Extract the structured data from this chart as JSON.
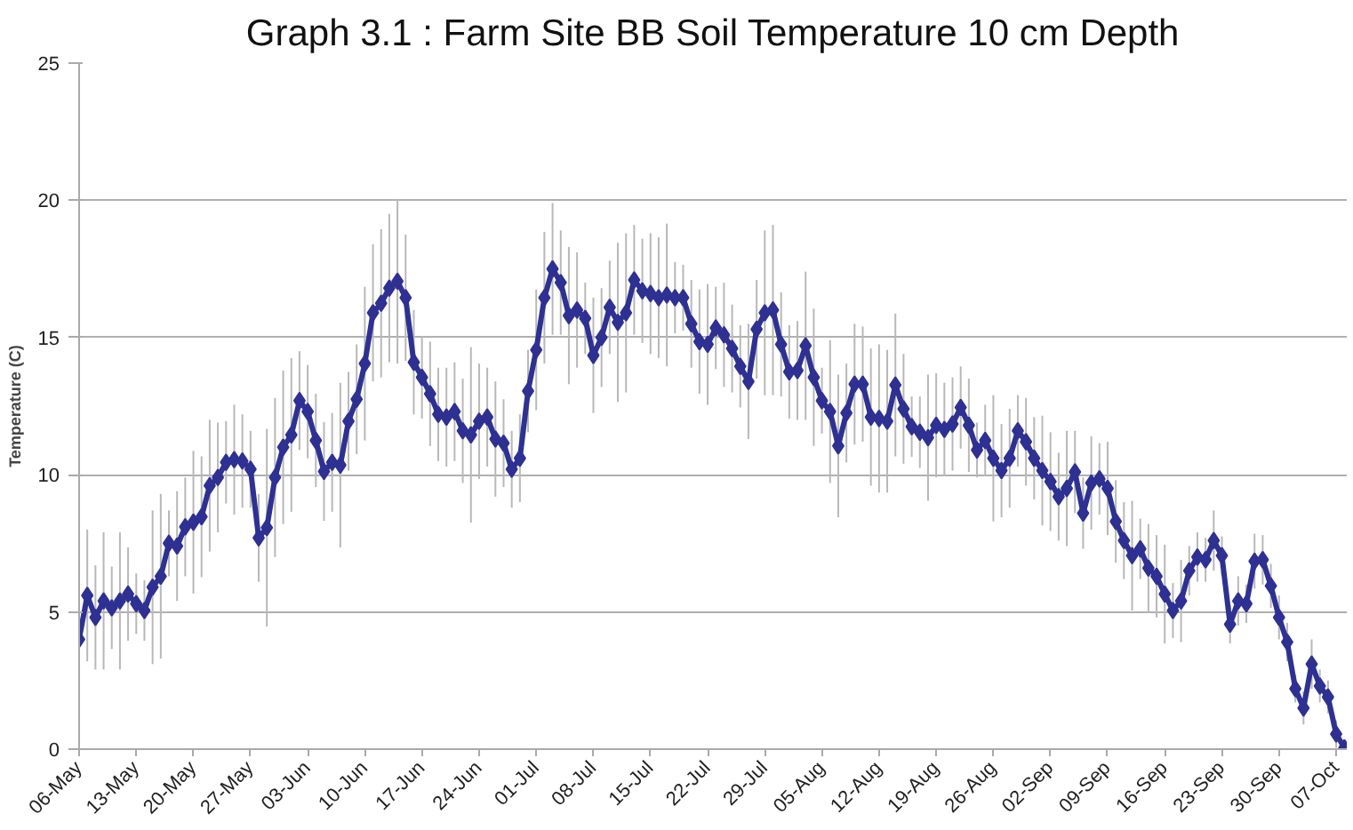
{
  "chart_data": {
    "type": "line",
    "title": "Graph 3.1 : Farm Site BB Soil Temperature 10 cm Depth",
    "ylabel": "Temperature (C)",
    "categories": [
      "06-May",
      null,
      null,
      null,
      null,
      null,
      null,
      "13-May",
      null,
      null,
      null,
      null,
      null,
      null,
      "20-May",
      null,
      null,
      null,
      null,
      null,
      null,
      "27-May",
      null,
      null,
      null,
      null,
      null,
      null,
      "03-Jun",
      null,
      null,
      null,
      null,
      null,
      null,
      "10-Jun",
      null,
      null,
      null,
      null,
      null,
      null,
      "17-Jun",
      null,
      null,
      null,
      null,
      null,
      null,
      "24-Jun",
      null,
      null,
      null,
      null,
      null,
      null,
      "01-Jul",
      null,
      null,
      null,
      null,
      null,
      null,
      "08-Jul",
      null,
      null,
      null,
      null,
      null,
      null,
      "15-Jul",
      null,
      null,
      null,
      null,
      null,
      null,
      "22-Jul",
      null,
      null,
      null,
      null,
      null,
      null,
      "29-Jul",
      null,
      null,
      null,
      null,
      null,
      null,
      "05-Aug",
      null,
      null,
      null,
      null,
      null,
      null,
      "12-Aug",
      null,
      null,
      null,
      null,
      null,
      null,
      "19-Aug",
      null,
      null,
      null,
      null,
      null,
      null,
      "26-Aug",
      null,
      null,
      null,
      null,
      null,
      null,
      "02-Sep",
      null,
      null,
      null,
      null,
      null,
      null,
      "09-Sep",
      null,
      null,
      null,
      null,
      null,
      null,
      "16-Sep",
      null,
      null,
      null,
      null,
      null,
      null,
      "23-Sep",
      null,
      null,
      null,
      null,
      null,
      null,
      "30-Sep",
      null,
      null,
      null,
      null,
      null,
      null,
      "07-Oct",
      null
    ],
    "series": [
      {
        "color": "#2e3192",
        "values": [
          4.0,
          5.6,
          4.8,
          5.4,
          5.15,
          5.4,
          5.65,
          5.3,
          5.05,
          5.9,
          6.3,
          7.5,
          7.4,
          8.1,
          8.27,
          8.47,
          9.6,
          9.9,
          10.45,
          10.55,
          10.5,
          10.2,
          7.7,
          8.07,
          9.9,
          11.0,
          11.45,
          12.7,
          12.3,
          11.25,
          10.12,
          10.45,
          10.35,
          11.95,
          12.75,
          14.05,
          15.9,
          16.25,
          16.8,
          17.05,
          16.45,
          14.1,
          13.55,
          12.95,
          12.2,
          12.1,
          12.3,
          11.6,
          11.45,
          11.95,
          12.1,
          11.3,
          11.15,
          10.2,
          10.6,
          13.05,
          14.55,
          16.45,
          17.5,
          17.0,
          15.8,
          16.0,
          15.7,
          14.35,
          15.0,
          16.1,
          15.55,
          15.9,
          17.1,
          16.7,
          16.6,
          16.45,
          16.55,
          16.45,
          16.45,
          15.5,
          14.85,
          14.75,
          15.35,
          15.1,
          14.6,
          13.95,
          13.4,
          15.3,
          15.9,
          16.0,
          14.75,
          13.75,
          13.8,
          14.7,
          13.55,
          12.7,
          12.3,
          11.05,
          12.25,
          13.3,
          13.3,
          12.1,
          12.05,
          11.95,
          13.27,
          12.4,
          11.75,
          11.55,
          11.35,
          11.8,
          11.65,
          11.85,
          12.45,
          11.8,
          10.9,
          11.25,
          10.6,
          10.15,
          10.6,
          11.6,
          11.2,
          10.6,
          10.15,
          9.75,
          9.2,
          9.5,
          10.1,
          8.6,
          9.7,
          9.85,
          9.5,
          8.3,
          7.6,
          7.05,
          7.3,
          6.6,
          6.3,
          5.65,
          5.05,
          5.4,
          6.5,
          7.0,
          6.9,
          7.6,
          7.05,
          4.55,
          5.4,
          5.3,
          6.85,
          6.9,
          5.95,
          4.8,
          3.9,
          2.2,
          1.5,
          3.1,
          2.3,
          1.9,
          0.55,
          0.05
        ],
        "errors": [
          2.2,
          2.4,
          1.9,
          2.5,
          1.5,
          2.5,
          1.7,
          1.1,
          1.1,
          2.8,
          3.0,
          1.2,
          2.0,
          1.8,
          2.6,
          2.2,
          2.4,
          2.0,
          1.5,
          2.0,
          1.7,
          1.4,
          1.6,
          3.6,
          2.9,
          2.8,
          2.8,
          1.8,
          1.7,
          1.7,
          1.8,
          1.8,
          3.0,
          1.8,
          2.0,
          2.8,
          2.5,
          2.7,
          2.7,
          3.0,
          2.3,
          1.9,
          1.5,
          1.9,
          1.7,
          1.8,
          1.8,
          1.9,
          3.2,
          2.1,
          1.8,
          2.1,
          1.6,
          1.4,
          1.6,
          1.5,
          2.2,
          2.4,
          2.4,
          1.9,
          2.5,
          2.1,
          1.3,
          2.1,
          1.8,
          1.7,
          2.9,
          2.9,
          2.0,
          1.9,
          2.2,
          2.2,
          2.6,
          1.3,
          1.2,
          1.6,
          1.9,
          2.2,
          1.5,
          1.9,
          1.6,
          1.5,
          2.1,
          1.8,
          3.0,
          3.1,
          1.9,
          1.7,
          1.8,
          2.7,
          2.5,
          1.2,
          2.6,
          2.6,
          1.8,
          2.2,
          2.1,
          2.5,
          2.7,
          2.6,
          2.6,
          2.0,
          1.1,
          1.3,
          2.3,
          1.9,
          1.7,
          1.7,
          1.5,
          1.7,
          1.0,
          1.3,
          2.3,
          1.7,
          1.8,
          1.3,
          1.6,
          1.5,
          2.0,
          1.8,
          1.6,
          2.1,
          1.5,
          1.3,
          1.7,
          1.3,
          1.7,
          1.5,
          1.4,
          2.0,
          1.1,
          1.6,
          1.5,
          1.8,
          1.0,
          1.5,
          0.9,
          0.9,
          0.8,
          1.1,
          0.7,
          0.7,
          0.9,
          0.7,
          1.0,
          0.9,
          0.8,
          0.8,
          0.7,
          0.5,
          0.6,
          0.9,
          0.6,
          0.6,
          0.5,
          null
        ]
      }
    ],
    "ylim": [
      0,
      25
    ],
    "yticks": [
      0,
      5,
      10,
      15,
      20,
      25
    ],
    "grid": "y",
    "marker": "diamond",
    "line_style": "solid"
  }
}
